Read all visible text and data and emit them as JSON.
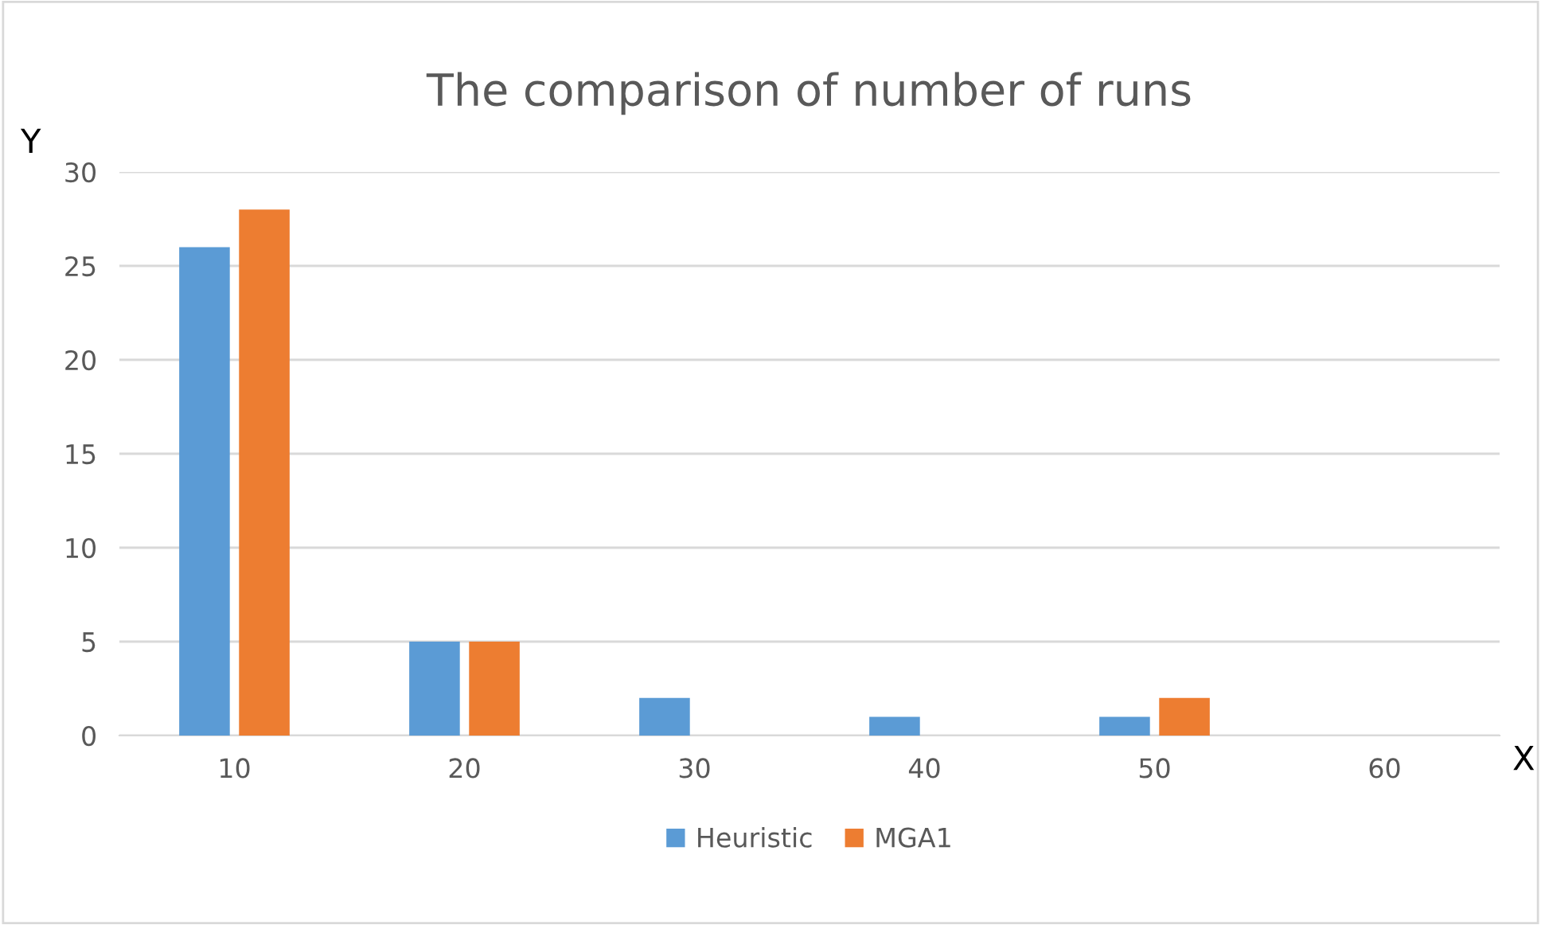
{
  "chart_data": {
    "type": "bar",
    "title": "The comparison of number of runs",
    "xlabel": "X",
    "ylabel": "Y",
    "categories": [
      "10",
      "20",
      "30",
      "40",
      "50",
      "60"
    ],
    "series": [
      {
        "name": "Heuristic",
        "color": "#5b9bd5",
        "values": [
          26,
          5,
          2,
          1,
          1,
          0
        ]
      },
      {
        "name": "MGA1",
        "color": "#ed7d31",
        "values": [
          28,
          5,
          0,
          0,
          2,
          0
        ]
      }
    ],
    "ylim": [
      0,
      30
    ],
    "yticks": [
      0,
      5,
      10,
      15,
      20,
      25,
      30
    ],
    "grid": "y",
    "legend": "bottom"
  }
}
